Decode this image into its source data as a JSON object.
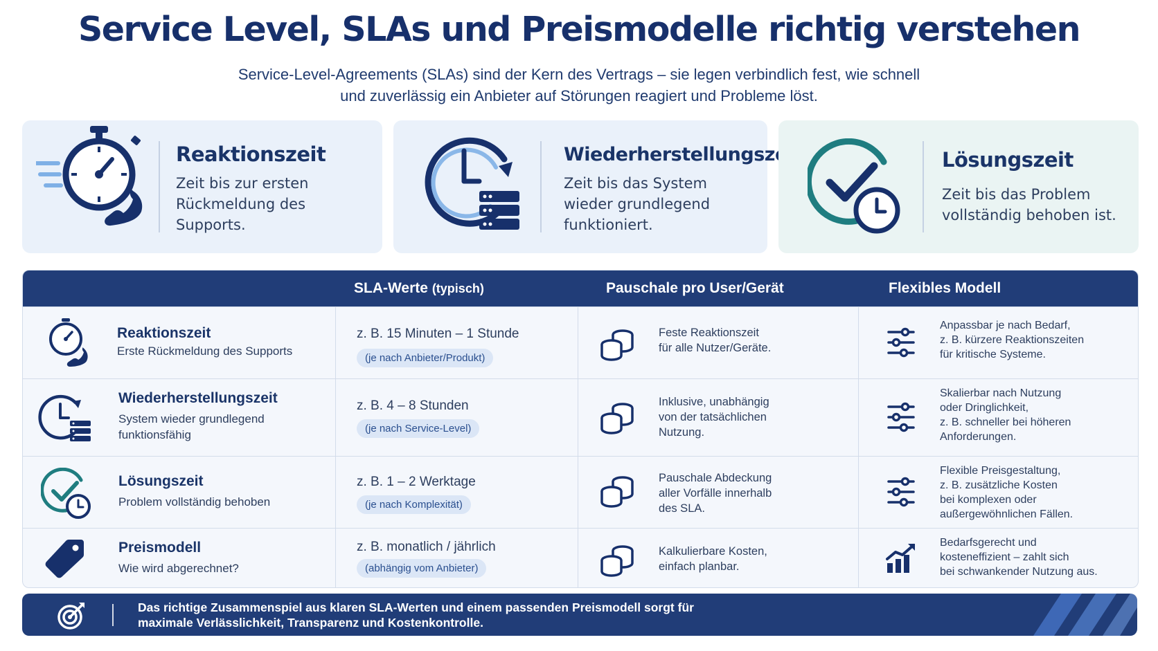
{
  "title": "Service Level, SLAs und Preismodelle richtig verstehen",
  "subtitle": {
    "line1": "Service-Level-Agreements (SLAs) sind der Kern des Vertrags – sie legen verbindlich fest, wie schnell",
    "line2": "und zuverlässig ein Anbieter auf Störungen reagiert und Probleme löst."
  },
  "cards": [
    {
      "icon": "stopwatch-phone-icon",
      "title": "Reaktionszeit",
      "desc": [
        "Zeit bis zur ersten",
        "Rückmeldung des",
        "Supports."
      ]
    },
    {
      "icon": "clock-server-icon",
      "title": "Wiederherstellungszeit",
      "desc": [
        "Zeit bis das System",
        "wieder grundlegend",
        "funktioniert."
      ]
    },
    {
      "icon": "check-clock-icon",
      "title": "Lösungszeit",
      "desc": [
        "Zeit bis das Problem",
        "vollständig behoben ist."
      ]
    }
  ],
  "table": {
    "headers": {
      "sla": "SLA-Werte",
      "sla_suffix": "(typisch)",
      "flat": "Pauschale pro User/Gerät",
      "flex": "Flexibles Modell"
    },
    "rows": [
      {
        "icon": "stopwatch-phone-icon",
        "title": "Reaktionszeit",
        "subtitle": [
          "Erste Rückmeldung des Supports"
        ],
        "sla_value": "z. B. 15 Minuten – 1 Stunde",
        "sla_note": "(je nach Anbieter/Produkt)",
        "flat": [
          "Feste Reaktionszeit",
          "für alle Nutzer/Geräte."
        ],
        "flex_icon": "sliders-icon",
        "flex": [
          "Anpassbar je nach Bedarf,",
          "z. B. kürzere Reaktionszeiten",
          "für kritische Systeme."
        ]
      },
      {
        "icon": "clock-server-icon",
        "title": "Wiederherstellungszeit",
        "subtitle": [
          "System wieder grundlegend",
          "funktionsfähig"
        ],
        "sla_value": "z. B. 4 – 8 Stunden",
        "sla_note": "(je nach Service-Level)",
        "flat": [
          "Inklusive, unabhängig",
          "von der tatsächlichen",
          "Nutzung."
        ],
        "flex_icon": "sliders-icon",
        "flex": [
          "Skalierbar nach Nutzung",
          "oder Dringlichkeit,",
          "z. B. schneller bei höheren",
          "Anforderungen."
        ]
      },
      {
        "icon": "check-clock-icon",
        "title": "Lösungszeit",
        "subtitle": [
          "Problem vollständig behoben"
        ],
        "sla_value": "z. B. 1 – 2 Werktage",
        "sla_note": "(je nach Komplexität)",
        "flat": [
          "Pauschale Abdeckung",
          "aller Vorfälle innerhalb",
          "des SLA."
        ],
        "flex_icon": "sliders-icon",
        "flex": [
          "Flexible Preisgestaltung,",
          "z. B. zusätzliche Kosten",
          "bei komplexen oder",
          "außergewöhnlichen Fällen."
        ]
      },
      {
        "icon": "price-tag-icon",
        "title": "Preismodell",
        "subtitle": [
          "Wie wird abgerechnet?"
        ],
        "sla_value": "z. B. monatlich / jährlich",
        "sla_note": "(abhängig vom Anbieter)",
        "flat": [
          "Kalkulierbare Kosten,",
          "einfach planbar."
        ],
        "flex_icon": "growth-chart-icon",
        "flex": [
          "Bedarfsgerecht und",
          "kosteneffizient – zahlt sich",
          "bei schwankender Nutzung aus."
        ]
      }
    ]
  },
  "banner": {
    "icon": "target-icon",
    "line1": "Das richtige Zusammenspiel aus klaren SLA-Werten und einem passenden Preismodell sorgt für",
    "line2": "maximale Verlässlichkeit, Transparenz und Kostenkontrolle."
  },
  "colors": {
    "navy": "#213d78",
    "title": "#17306b",
    "teal": "#1f7d80",
    "light_blue": "#7fb0e6",
    "card_bg": "#eaf1fa"
  }
}
